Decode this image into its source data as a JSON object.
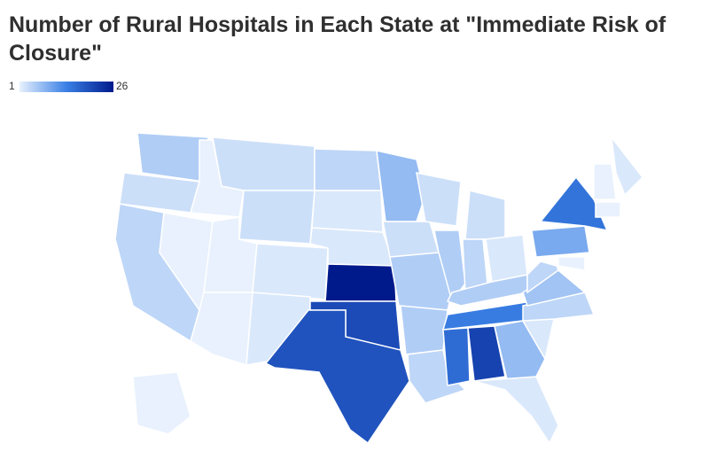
{
  "chart_data": {
    "type": "choropleth",
    "title": "Number of Rural Hospitals in Each State at \"Immediate Risk of Closure\"",
    "range": [
      1,
      26
    ],
    "color_scale": [
      "#e8f1fd",
      "#3a80e6",
      "#001a8c"
    ],
    "values": [
      5,
      3,
      4,
      1,
      1,
      3,
      3,
      1,
      1,
      2,
      2,
      4,
      2,
      2,
      26,
      20,
      19,
      7,
      3,
      5,
      5,
      4,
      3,
      5,
      3,
      4,
      2,
      5,
      14,
      16,
      21,
      7,
      2,
      2,
      4,
      6,
      4,
      9,
      15,
      2,
      1,
      1,
      1,
      1
    ]
  }
}
